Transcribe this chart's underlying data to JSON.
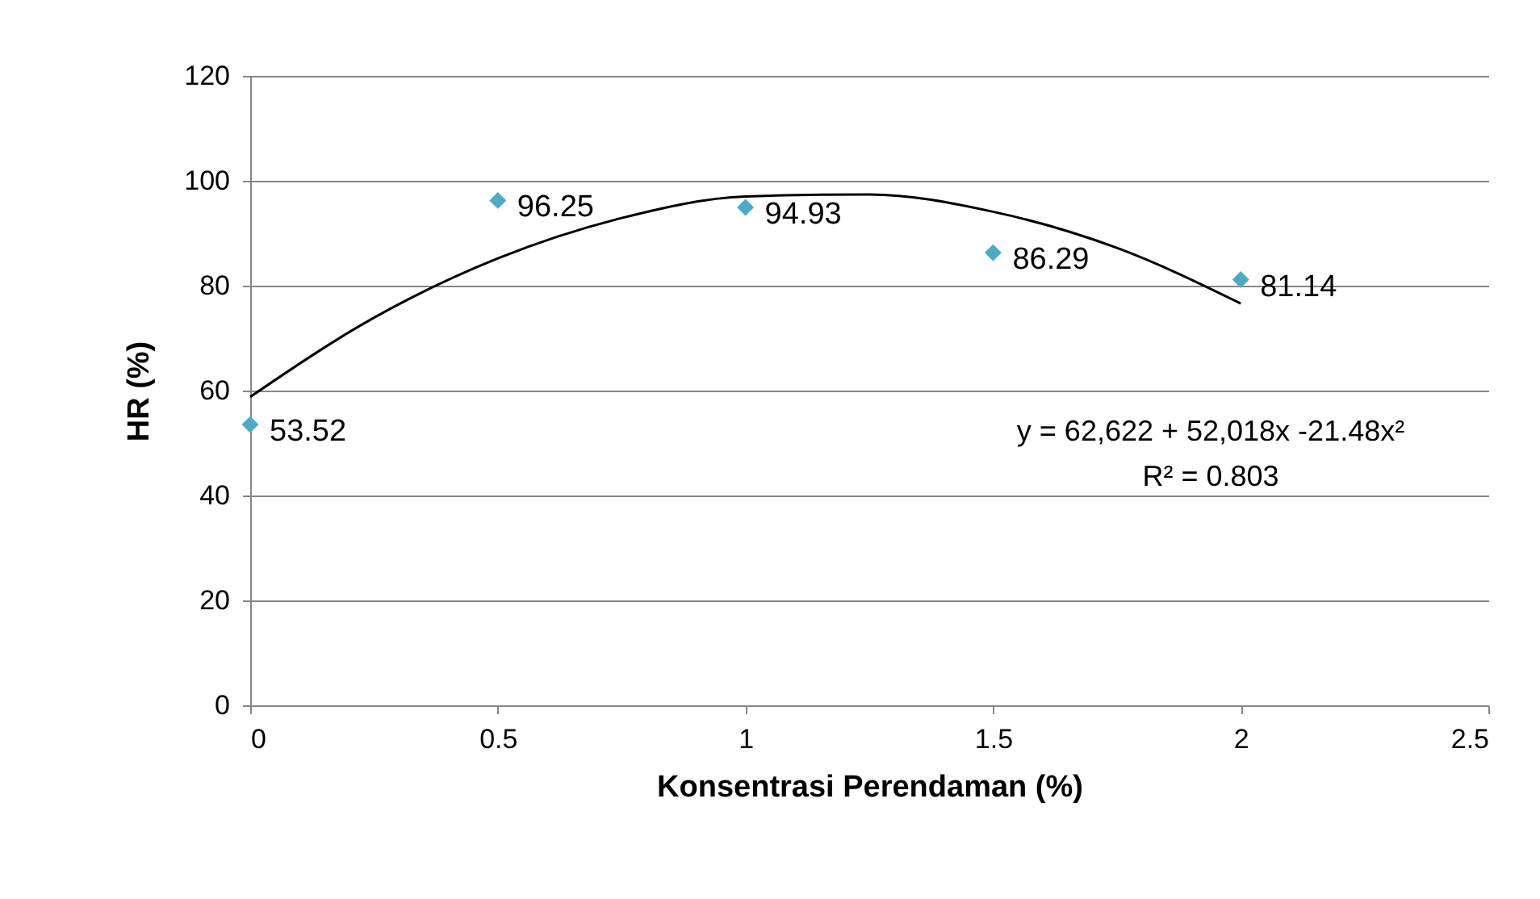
{
  "chart_data": {
    "type": "scatter",
    "xlabel": "Konsentrasi Perendaman (%)",
    "ylabel": "HR (%)",
    "xlim": [
      0,
      2.5
    ],
    "xticks": [
      0,
      0.5,
      1,
      1.5,
      2,
      2.5
    ],
    "ylim": [
      0,
      120
    ],
    "yticks": [
      0,
      20,
      40,
      60,
      80,
      100,
      120
    ],
    "grid": "y",
    "marker": "diamond",
    "series": [
      {
        "color": "#4bacc6",
        "x": [
          0,
          0.5,
          1,
          1.5,
          2
        ],
        "values": [
          53.52,
          96.25,
          94.93,
          86.29,
          81.14
        ],
        "value_labels": [
          "53.52",
          "96.25",
          "94.93",
          "86.29",
          "81.14"
        ]
      },
      {
        "type": "line",
        "color": "#000000",
        "marker": "none",
        "line_style": "solid",
        "x": [
          0,
          0.25,
          0.5,
          0.75,
          1,
          1.25,
          1.5,
          1.75,
          2
        ],
        "values": [
          58.8,
          73.9,
          85.2,
          92.9,
          97,
          97.4,
          94.1,
          87.2,
          76.6
        ]
      }
    ],
    "annotations": [
      "y = 62,622 + 52,018x -21.48x²",
      "R² = 0.803"
    ]
  }
}
